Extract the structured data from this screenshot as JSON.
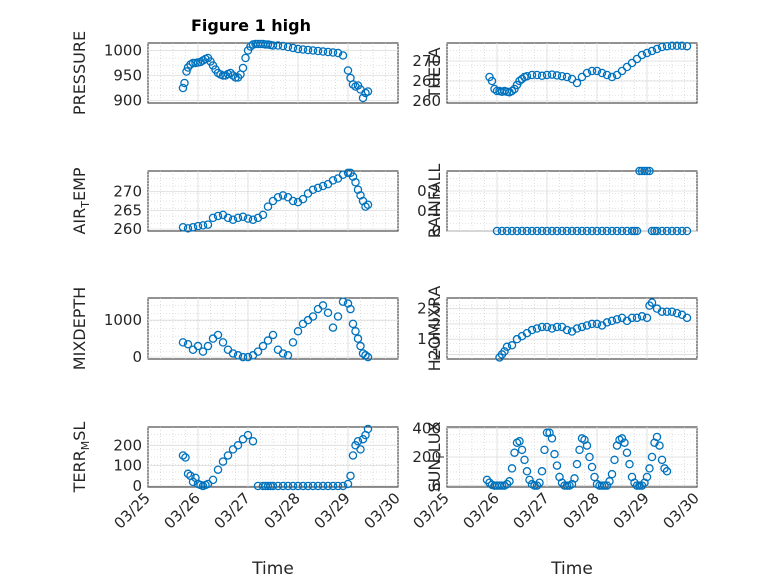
{
  "figure": {
    "title": "Figure 1 high",
    "marker_color": "#0072BD",
    "x_tick_labels": [
      "03/25",
      "03/26",
      "03/27",
      "03/28",
      "03/29",
      "03/30"
    ],
    "xlabel": "Time"
  },
  "chart_data": [
    {
      "type": "scatter",
      "ylabel": "PRESSURE",
      "title": "Figure 1 high",
      "xlim": [
        0,
        5
      ],
      "ylim": [
        895,
        1015
      ],
      "yticks": [
        900,
        950,
        1000
      ],
      "x": [
        0.7,
        0.73,
        0.77,
        0.8,
        0.85,
        0.9,
        0.95,
        1.0,
        1.05,
        1.1,
        1.15,
        1.2,
        1.25,
        1.3,
        1.35,
        1.4,
        1.45,
        1.5,
        1.55,
        1.6,
        1.65,
        1.7,
        1.75,
        1.8,
        1.85,
        1.9,
        1.95,
        2.0,
        2.05,
        2.1,
        2.15,
        2.2,
        2.25,
        2.3,
        2.35,
        2.4,
        2.45,
        2.5,
        2.6,
        2.7,
        2.8,
        2.9,
        3.0,
        3.1,
        3.2,
        3.3,
        3.4,
        3.5,
        3.6,
        3.7,
        3.8,
        3.9,
        4.0,
        4.05,
        4.1,
        4.15,
        4.2,
        4.25,
        4.3,
        4.35,
        4.4
      ],
      "y": [
        925,
        935,
        958,
        966,
        972,
        975,
        975,
        976,
        977,
        980,
        983,
        985,
        978,
        970,
        962,
        955,
        952,
        950,
        950,
        953,
        955,
        950,
        946,
        946,
        952,
        965,
        985,
        1000,
        1008,
        1012,
        1013,
        1013,
        1013,
        1013,
        1012,
        1012,
        1011,
        1010,
        1010,
        1009,
        1007,
        1005,
        1003,
        1002,
        1001,
        1000,
        999,
        998,
        997,
        996,
        995,
        990,
        960,
        945,
        932,
        928,
        930,
        922,
        905,
        915,
        918
      ]
    },
    {
      "type": "scatter",
      "ylabel": "THETA",
      "xlim": [
        0,
        5
      ],
      "ylim": [
        259.5,
        274.5
      ],
      "yticks": [
        260,
        265,
        270
      ],
      "x": [
        0.85,
        0.9,
        0.95,
        1.0,
        1.05,
        1.1,
        1.15,
        1.2,
        1.25,
        1.3,
        1.35,
        1.4,
        1.45,
        1.5,
        1.55,
        1.6,
        1.7,
        1.8,
        1.9,
        2.0,
        2.1,
        2.2,
        2.3,
        2.4,
        2.5,
        2.6,
        2.7,
        2.8,
        2.9,
        3.0,
        3.1,
        3.2,
        3.3,
        3.4,
        3.5,
        3.6,
        3.7,
        3.8,
        3.9,
        4.0,
        4.1,
        4.2,
        4.3,
        4.4,
        4.5,
        4.6,
        4.7,
        4.8
      ],
      "y": [
        266,
        265,
        263,
        262.5,
        262.5,
        262.3,
        262.5,
        262.3,
        262.2,
        262.5,
        263,
        264,
        265,
        265.5,
        266,
        266.2,
        266.5,
        266.5,
        266.3,
        266.5,
        266.6,
        266.4,
        266.2,
        266,
        265.5,
        264.5,
        266,
        267,
        267.5,
        267.5,
        267,
        266.5,
        266,
        266.5,
        267.5,
        268.5,
        269.5,
        270.5,
        271.5,
        272,
        272.5,
        273,
        273.5,
        273.7,
        273.8,
        273.8,
        273.8,
        273.7
      ]
    },
    {
      "type": "scatter",
      "ylabel": "AIR_TEMP",
      "xlim": [
        0,
        5
      ],
      "ylim": [
        259.5,
        275.5
      ],
      "yticks": [
        260,
        265,
        270
      ],
      "x": [
        0.7,
        0.8,
        0.9,
        1.0,
        1.1,
        1.2,
        1.3,
        1.4,
        1.5,
        1.6,
        1.7,
        1.8,
        1.9,
        2.0,
        2.1,
        2.2,
        2.3,
        2.4,
        2.5,
        2.6,
        2.7,
        2.8,
        2.9,
        3.0,
        3.1,
        3.2,
        3.3,
        3.4,
        3.5,
        3.6,
        3.7,
        3.8,
        3.9,
        4.0,
        4.05,
        4.1,
        4.15,
        4.2,
        4.25,
        4.3,
        4.35,
        4.4
      ],
      "y": [
        260.5,
        260.2,
        260.5,
        260.8,
        261,
        261.2,
        263,
        263.5,
        263.8,
        263,
        262.5,
        263,
        263.3,
        262.8,
        262.5,
        263,
        263.8,
        266,
        267.5,
        268.5,
        269,
        268.5,
        267.5,
        267.2,
        268,
        269.5,
        270.5,
        271,
        271.5,
        272,
        273,
        273.5,
        274.5,
        275,
        275,
        274,
        272.5,
        270.5,
        269,
        267.5,
        266,
        266.5
      ]
    },
    {
      "type": "scatter",
      "ylabel": "RAINFALL",
      "xlim": [
        0,
        5
      ],
      "ylim": [
        0,
        0.3
      ],
      "yticks": [
        0,
        0.1,
        0.2
      ],
      "x": [
        1.0,
        1.1,
        1.2,
        1.3,
        1.4,
        1.5,
        1.6,
        1.7,
        1.8,
        1.9,
        2.0,
        2.1,
        2.2,
        2.3,
        2.4,
        2.5,
        2.6,
        2.7,
        2.8,
        2.9,
        3.0,
        3.1,
        3.2,
        3.3,
        3.4,
        3.5,
        3.6,
        3.7,
        3.75,
        3.8,
        3.85,
        3.9,
        3.95,
        4.0,
        4.05,
        4.1,
        4.15,
        4.2,
        4.3,
        4.4,
        4.5,
        4.6,
        4.7,
        4.8
      ],
      "y": [
        0,
        0,
        0,
        0,
        0,
        0,
        0,
        0,
        0,
        0,
        0,
        0,
        0,
        0,
        0,
        0,
        0,
        0,
        0,
        0,
        0,
        0,
        0,
        0,
        0,
        0,
        0,
        0,
        0,
        0,
        0.3,
        0.3,
        0.3,
        0.3,
        0.3,
        0,
        0,
        0,
        0,
        0,
        0,
        0,
        0,
        0
      ]
    },
    {
      "type": "scatter",
      "ylabel": "MIXDEPTH",
      "xlim": [
        0,
        5
      ],
      "ylim": [
        -50,
        1600
      ],
      "yticks": [
        0,
        1000
      ],
      "x": [
        0.7,
        0.8,
        0.9,
        1.0,
        1.1,
        1.2,
        1.3,
        1.4,
        1.5,
        1.6,
        1.7,
        1.8,
        1.9,
        2.0,
        2.1,
        2.2,
        2.3,
        2.4,
        2.5,
        2.6,
        2.7,
        2.8,
        2.9,
        3.0,
        3.1,
        3.2,
        3.3,
        3.4,
        3.5,
        3.6,
        3.7,
        3.8,
        3.9,
        4.0,
        4.05,
        4.1,
        4.15,
        4.2,
        4.25,
        4.3,
        4.35,
        4.4
      ],
      "y": [
        400,
        350,
        200,
        300,
        150,
        300,
        500,
        600,
        400,
        200,
        100,
        50,
        0,
        0,
        50,
        150,
        300,
        450,
        600,
        200,
        100,
        50,
        400,
        700,
        900,
        1000,
        1100,
        1300,
        1400,
        1200,
        800,
        1100,
        1500,
        1450,
        1300,
        900,
        700,
        500,
        300,
        100,
        50,
        0
      ]
    },
    {
      "type": "scatter",
      "ylabel": "H2OMIXRA",
      "xlim": [
        0,
        5
      ],
      "ylim": [
        0.85,
        2.85
      ],
      "yticks": [
        1,
        1.5,
        2,
        2.5
      ],
      "x": [
        1.05,
        1.1,
        1.15,
        1.2,
        1.3,
        1.4,
        1.5,
        1.6,
        1.7,
        1.8,
        1.9,
        2.0,
        2.1,
        2.2,
        2.3,
        2.4,
        2.5,
        2.6,
        2.7,
        2.8,
        2.9,
        3.0,
        3.1,
        3.2,
        3.3,
        3.4,
        3.5,
        3.6,
        3.7,
        3.8,
        3.9,
        4.0,
        4.05,
        4.1,
        4.2,
        4.3,
        4.4,
        4.5,
        4.6,
        4.7,
        4.8
      ],
      "y": [
        0.9,
        1.0,
        1.1,
        1.25,
        1.3,
        1.5,
        1.6,
        1.7,
        1.8,
        1.85,
        1.9,
        1.9,
        1.85,
        1.9,
        1.9,
        1.8,
        1.75,
        1.85,
        1.9,
        1.95,
        2.0,
        2.0,
        1.95,
        2.05,
        2.1,
        2.15,
        2.2,
        2.1,
        2.2,
        2.2,
        2.25,
        2.2,
        2.6,
        2.7,
        2.5,
        2.4,
        2.4,
        2.4,
        2.35,
        2.3,
        2.2
      ]
    },
    {
      "type": "scatter",
      "ylabel": "TERR_MSL",
      "xlim": [
        0,
        5
      ],
      "ylim": [
        -5,
        290
      ],
      "yticks": [
        0,
        100,
        200
      ],
      "x": [
        0.7,
        0.75,
        0.8,
        0.85,
        0.9,
        0.95,
        1.0,
        1.05,
        1.1,
        1.15,
        1.2,
        1.3,
        1.4,
        1.5,
        1.6,
        1.7,
        1.8,
        1.9,
        2.0,
        2.1,
        2.2,
        2.3,
        2.35,
        2.4,
        2.45,
        2.5,
        2.6,
        2.7,
        2.8,
        2.9,
        3.0,
        3.1,
        3.2,
        3.3,
        3.4,
        3.5,
        3.6,
        3.7,
        3.8,
        3.9,
        4.0,
        4.05,
        4.1,
        4.15,
        4.2,
        4.25,
        4.3,
        4.35,
        4.4
      ],
      "y": [
        150,
        140,
        60,
        50,
        20,
        40,
        10,
        5,
        0,
        5,
        10,
        30,
        80,
        120,
        150,
        180,
        200,
        230,
        250,
        220,
        0,
        0,
        0,
        0,
        0,
        0,
        0,
        0,
        0,
        0,
        0,
        0,
        0,
        0,
        0,
        0,
        0,
        0,
        0,
        0,
        10,
        50,
        150,
        200,
        220,
        180,
        230,
        250,
        280
      ]
    },
    {
      "type": "scatter",
      "ylabel": "SUN_FLUX",
      "xlim": [
        0,
        5
      ],
      "ylim": [
        -10,
        410
      ],
      "yticks": [
        0,
        200,
        400
      ],
      "x": [
        0.8,
        0.85,
        0.9,
        0.95,
        1.0,
        1.05,
        1.1,
        1.15,
        1.2,
        1.25,
        1.3,
        1.35,
        1.4,
        1.45,
        1.5,
        1.55,
        1.6,
        1.65,
        1.7,
        1.75,
        1.8,
        1.85,
        1.9,
        1.95,
        2.0,
        2.05,
        2.1,
        2.15,
        2.2,
        2.25,
        2.3,
        2.35,
        2.4,
        2.45,
        2.5,
        2.55,
        2.6,
        2.65,
        2.7,
        2.75,
        2.8,
        2.85,
        2.9,
        2.95,
        3.0,
        3.05,
        3.1,
        3.15,
        3.2,
        3.25,
        3.3,
        3.35,
        3.4,
        3.45,
        3.5,
        3.55,
        3.6,
        3.65,
        3.7,
        3.75,
        3.8,
        3.85,
        3.9,
        3.95,
        4.0,
        4.05,
        4.1,
        4.15,
        4.2,
        4.25,
        4.3,
        4.35,
        4.4
      ],
      "y": [
        40,
        20,
        5,
        0,
        0,
        0,
        0,
        0,
        10,
        30,
        120,
        230,
        300,
        310,
        250,
        180,
        100,
        40,
        10,
        0,
        0,
        20,
        100,
        250,
        370,
        370,
        330,
        220,
        140,
        60,
        20,
        0,
        0,
        0,
        10,
        50,
        150,
        250,
        330,
        320,
        280,
        200,
        130,
        60,
        10,
        0,
        0,
        0,
        0,
        30,
        80,
        180,
        280,
        320,
        330,
        300,
        230,
        150,
        60,
        20,
        0,
        0,
        0,
        20,
        60,
        120,
        200,
        300,
        340,
        280,
        180,
        120,
        100
      ]
    }
  ]
}
